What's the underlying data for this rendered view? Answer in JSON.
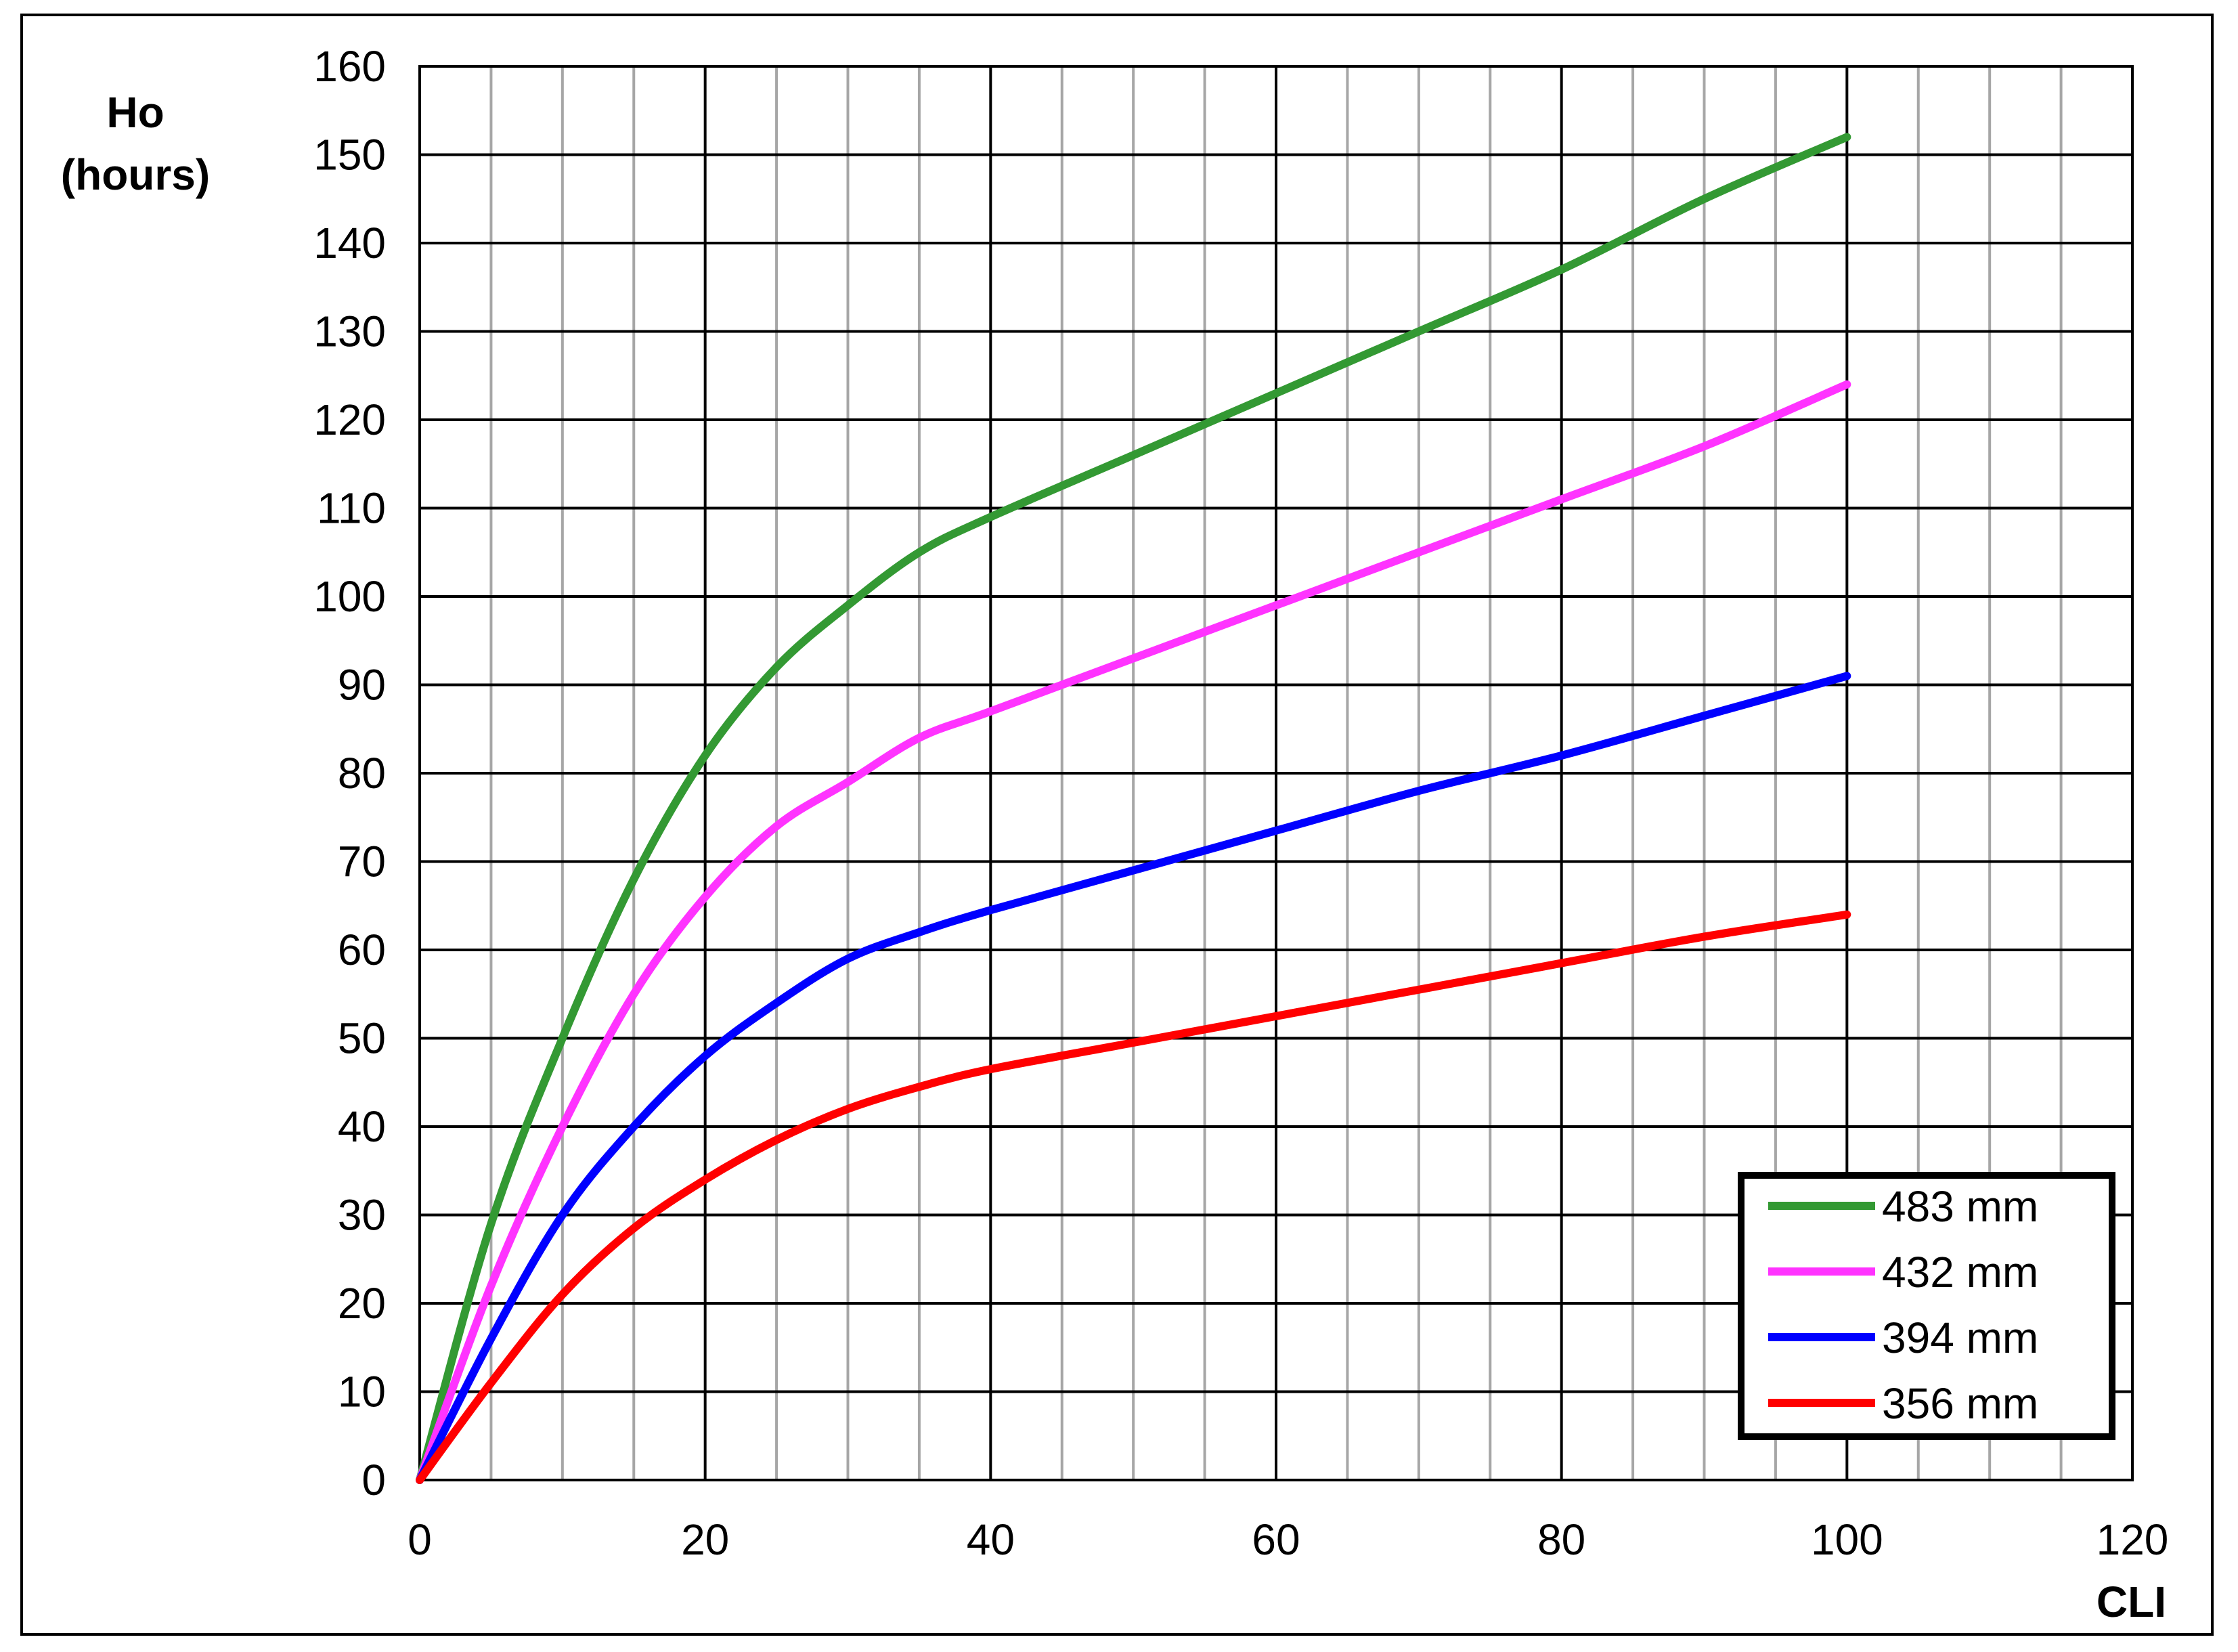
{
  "chart_data": {
    "type": "line",
    "title": "",
    "xlabel": "CLI",
    "ylabel_line1": "Ho",
    "ylabel_line2": "(hours)",
    "xlim": [
      0,
      120
    ],
    "ylim": [
      0,
      160
    ],
    "x_major_ticks": [
      0,
      20,
      40,
      60,
      80,
      100,
      120
    ],
    "x_minor_step": 5,
    "y_ticks": [
      0,
      10,
      20,
      30,
      40,
      50,
      60,
      70,
      80,
      90,
      100,
      110,
      120,
      130,
      140,
      150,
      160
    ],
    "grid": true,
    "legend_position": "bottom-right",
    "series": [
      {
        "name": "483 mm",
        "color": "#339933",
        "x": [
          0,
          5,
          10,
          15,
          20,
          25,
          30,
          35,
          40,
          50,
          60,
          70,
          80,
          90,
          100
        ],
        "y": [
          0,
          29,
          50,
          68,
          82,
          92,
          99,
          105,
          109,
          116,
          123,
          130,
          137,
          145,
          152
        ]
      },
      {
        "name": "432 mm",
        "color": "#ff33ff",
        "x": [
          0,
          5,
          10,
          15,
          20,
          25,
          30,
          35,
          40,
          50,
          60,
          70,
          80,
          90,
          100
        ],
        "y": [
          0,
          22,
          40,
          55,
          66,
          74,
          79,
          84,
          87,
          93,
          99,
          105,
          111,
          117,
          124
        ]
      },
      {
        "name": "394 mm",
        "color": "#0000ff",
        "x": [
          0,
          5,
          10,
          15,
          20,
          25,
          30,
          35,
          40,
          50,
          60,
          70,
          80,
          90,
          100
        ],
        "y": [
          0,
          16,
          30,
          40,
          48,
          54,
          59,
          62,
          64.5,
          69,
          73.5,
          78,
          82,
          86.5,
          91
        ]
      },
      {
        "name": "356 mm",
        "color": "#ff0000",
        "x": [
          0,
          5,
          10,
          15,
          20,
          25,
          30,
          35,
          40,
          50,
          60,
          70,
          80,
          90,
          100
        ],
        "y": [
          0,
          11,
          21,
          28.5,
          34,
          38.5,
          42,
          44.5,
          46.5,
          49.5,
          52.5,
          55.5,
          58.5,
          61.5,
          64
        ]
      }
    ]
  }
}
